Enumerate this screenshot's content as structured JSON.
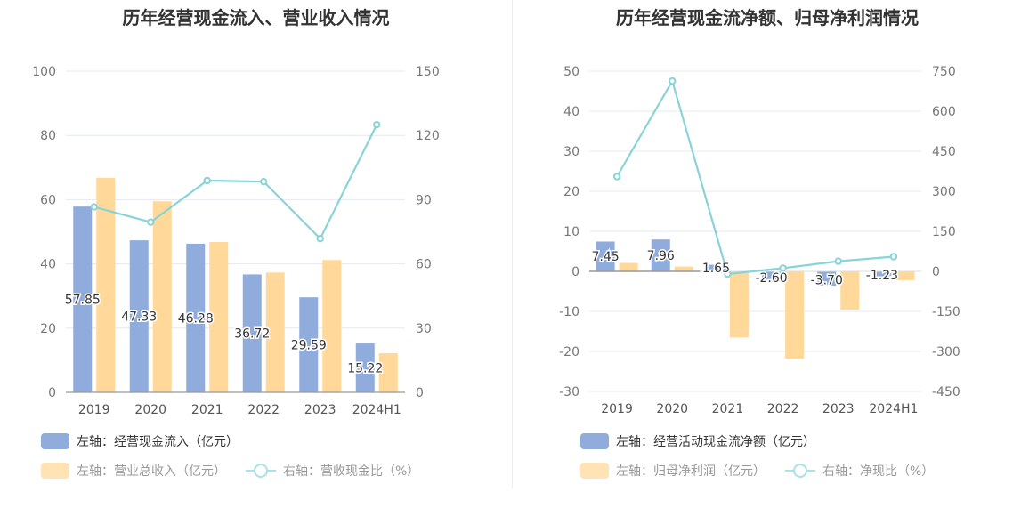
{
  "charts": [
    {
      "title": "历年经营现金流入、营业收入情况",
      "legend": [
        {
          "label": "左轴：经营现金流入（亿元）",
          "color": "#8facdc",
          "kind": "bar"
        },
        {
          "label": "左轴：营业总收入（亿元）",
          "color": "#ffe3b5",
          "kind": "bar"
        },
        {
          "label": "右轴：营收现金比（%）",
          "color": "#a6e3e6",
          "kind": "line"
        }
      ]
    },
    {
      "title": "历年经营现金流净额、归母净利润情况",
      "legend": [
        {
          "label": "左轴：经营活动现金流净额（亿元）",
          "color": "#8facdc",
          "kind": "bar"
        },
        {
          "label": "左轴：归母净利润（亿元）",
          "color": "#ffe3b5",
          "kind": "bar"
        },
        {
          "label": "右轴：净现比（%）",
          "color": "#a6e3e6",
          "kind": "line"
        }
      ]
    }
  ],
  "chart_data": [
    {
      "type": "bar",
      "title": "历年经营现金流入、营业收入情况",
      "categories": [
        "2019",
        "2020",
        "2021",
        "2022",
        "2023",
        "2024H1"
      ],
      "y_left": {
        "min": 0,
        "max": 100,
        "ticks": [
          0,
          20,
          40,
          60,
          80,
          100
        ]
      },
      "y_right": {
        "min": 0,
        "max": 150,
        "ticks": [
          0,
          30,
          60,
          90,
          120,
          150
        ]
      },
      "series": [
        {
          "name": "经营现金流入（亿元）",
          "axis": "left",
          "type": "bar",
          "color": "#8facdc",
          "values": [
            57.85,
            47.33,
            46.28,
            36.72,
            29.59,
            15.22
          ],
          "labels": true
        },
        {
          "name": "营业总收入（亿元）",
          "axis": "left",
          "type": "bar",
          "color": "#ffd89a",
          "values": [
            66.8,
            59.5,
            46.8,
            37.3,
            41.2,
            12.2
          ],
          "labels": false
        },
        {
          "name": "营收现金比（%）",
          "axis": "right",
          "type": "line",
          "color": "#88d4d8",
          "values": [
            86.6,
            79.5,
            98.9,
            98.4,
            71.8,
            125.0
          ]
        }
      ],
      "grid": true,
      "legend_position": "bottom-left"
    },
    {
      "type": "bar",
      "title": "历年经营现金流净额、归母净利润情况",
      "categories": [
        "2019",
        "2020",
        "2021",
        "2022",
        "2023",
        "2024H1"
      ],
      "y_left": {
        "min": -30,
        "max": 50,
        "ticks": [
          -30,
          -20,
          -10,
          0,
          10,
          20,
          30,
          40,
          50
        ]
      },
      "y_right": {
        "min": -450,
        "max": 750,
        "ticks": [
          -450,
          -300,
          -150,
          0,
          150,
          300,
          450,
          600,
          750
        ]
      },
      "series": [
        {
          "name": "经营活动现金流净额（亿元）",
          "axis": "left",
          "type": "bar",
          "color": "#8facdc",
          "values": [
            7.45,
            7.96,
            1.65,
            -2.6,
            -3.7,
            -1.23
          ],
          "labels": true
        },
        {
          "name": "归母净利润（亿元）",
          "axis": "left",
          "type": "bar",
          "color": "#ffd89a",
          "values": [
            2.1,
            1.2,
            -16.5,
            -21.8,
            -9.6,
            -2.2
          ],
          "labels": false
        },
        {
          "name": "净现比（%）",
          "axis": "right",
          "type": "line",
          "color": "#88d4d8",
          "values": [
            355,
            713,
            -10,
            12,
            38,
            55
          ]
        }
      ],
      "grid": true,
      "legend_position": "bottom-left"
    }
  ]
}
